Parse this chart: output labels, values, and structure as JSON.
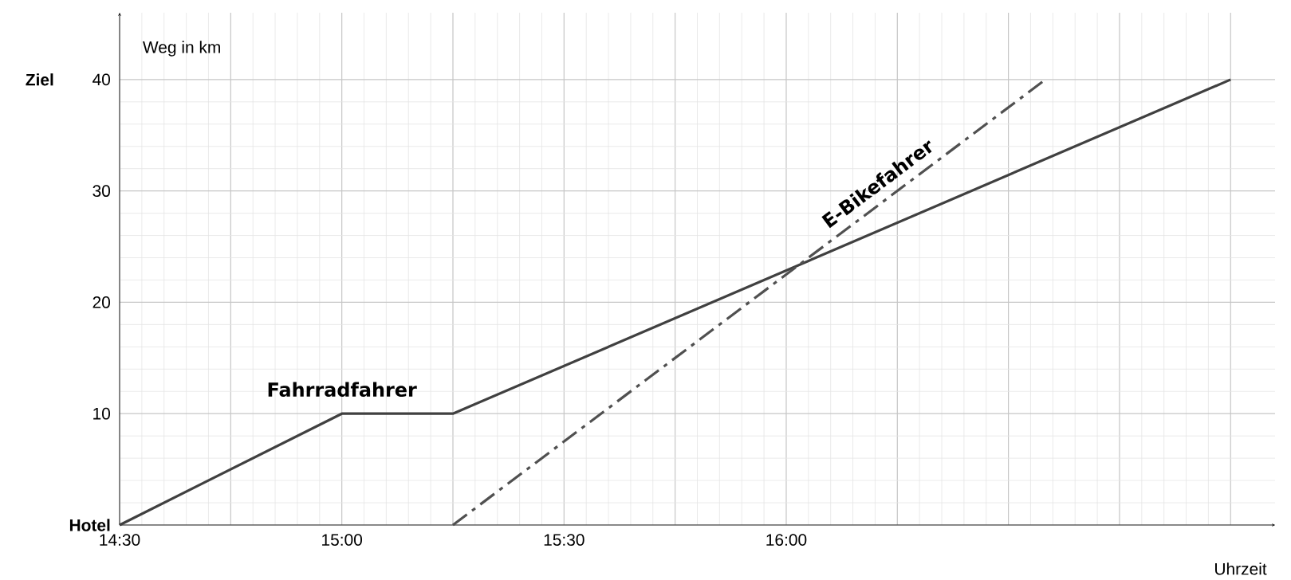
{
  "chart_data": {
    "type": "line",
    "xlabel": "Uhrzeit",
    "ylabel": "Weg in km",
    "xlim": [
      14.5,
      17.1
    ],
    "ylim": [
      0,
      46
    ],
    "xticks": [
      {
        "value": 14.5,
        "label": "14:30"
      },
      {
        "value": 14.75,
        "label": null
      },
      {
        "value": 15,
        "label": "15:00"
      },
      {
        "value": 15.25,
        "label": null
      },
      {
        "value": 15.5,
        "label": "15:30"
      },
      {
        "value": 15.75,
        "label": null
      },
      {
        "value": 16,
        "label": "16:00"
      },
      {
        "value": 16.25,
        "label": null
      },
      {
        "value": 16.5,
        "label": null
      },
      {
        "value": 16.75,
        "label": null
      },
      {
        "value": 17,
        "label": null
      }
    ],
    "yticks": [
      {
        "value": 0,
        "label": "Hotel"
      },
      10,
      20,
      30,
      {
        "value": 40,
        "label": "40"
      }
    ],
    "annotations": [
      "Ziel"
    ],
    "grid": true,
    "marker": "none",
    "series": [
      {
        "name": "Fahrradfahrer",
        "color": "#404040",
        "line_style": "solid",
        "x": [
          14.5,
          15,
          15.25,
          17
        ],
        "values": [
          0,
          10,
          10,
          40
        ]
      },
      {
        "name": "E-Bikefahrer",
        "color": "#505050",
        "line_style": "dashdotted",
        "x": [
          15.25,
          16.5833
        ],
        "values": [
          0,
          40
        ]
      }
    ]
  }
}
